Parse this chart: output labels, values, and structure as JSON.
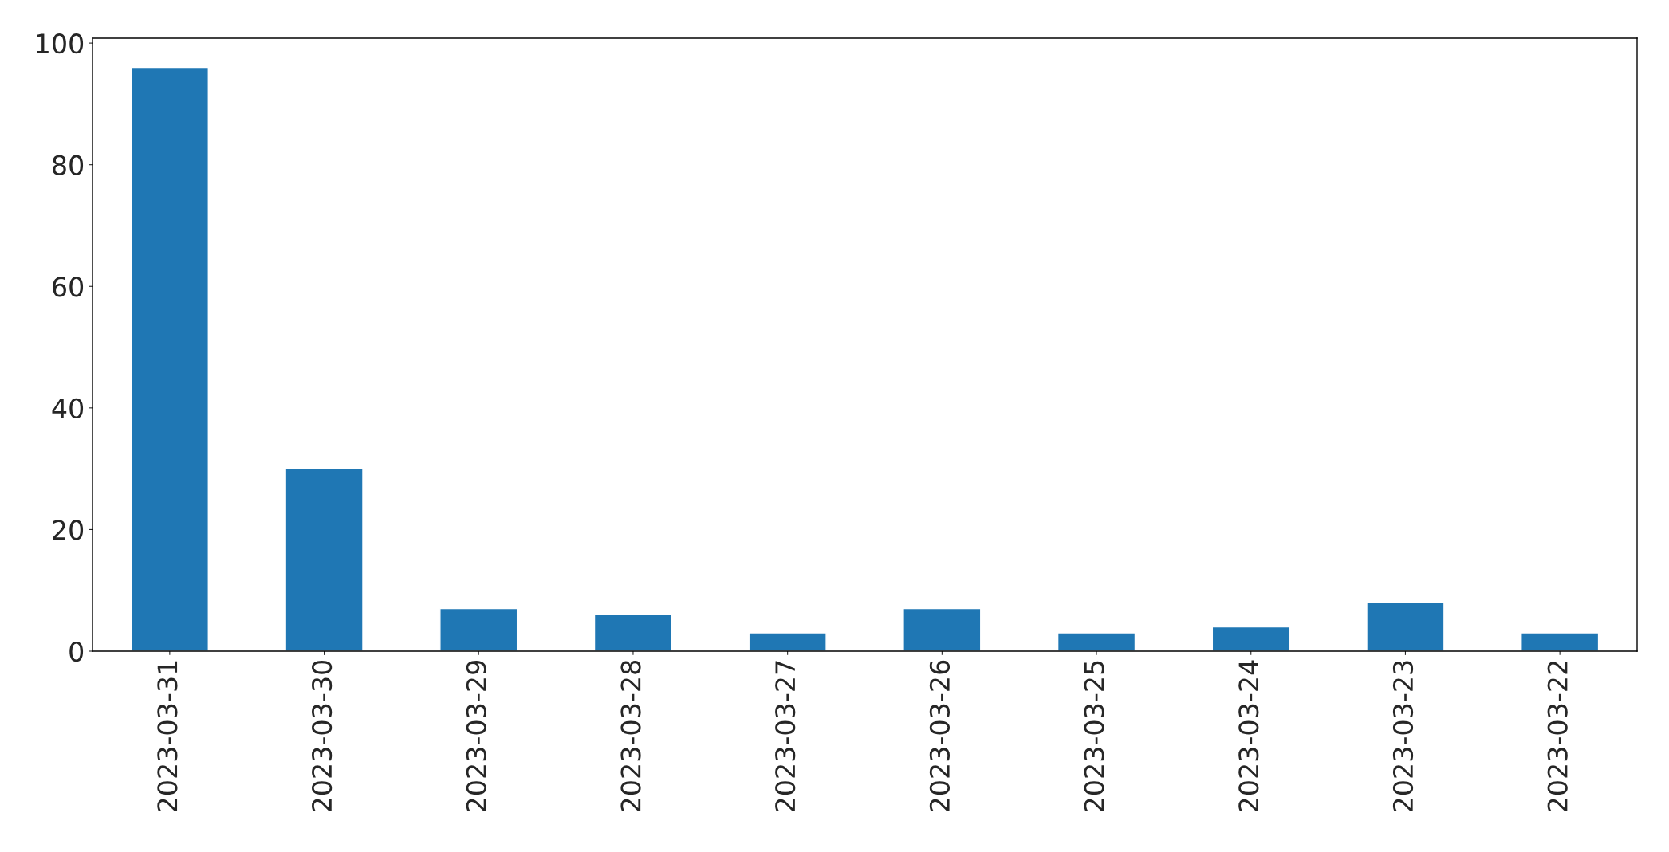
{
  "chart_data": {
    "type": "bar",
    "categories": [
      "2023-03-31",
      "2023-03-30",
      "2023-03-29",
      "2023-03-28",
      "2023-03-27",
      "2023-03-26",
      "2023-03-25",
      "2023-03-24",
      "2023-03-23",
      "2023-03-22"
    ],
    "values": [
      96,
      30,
      7,
      6,
      3,
      7,
      3,
      4,
      8,
      3
    ],
    "color": "#1f77b4",
    "ylim": [
      0,
      100.8
    ],
    "yticks": [
      0,
      20,
      40,
      60,
      80,
      100
    ],
    "grid": false,
    "legend": false
  }
}
